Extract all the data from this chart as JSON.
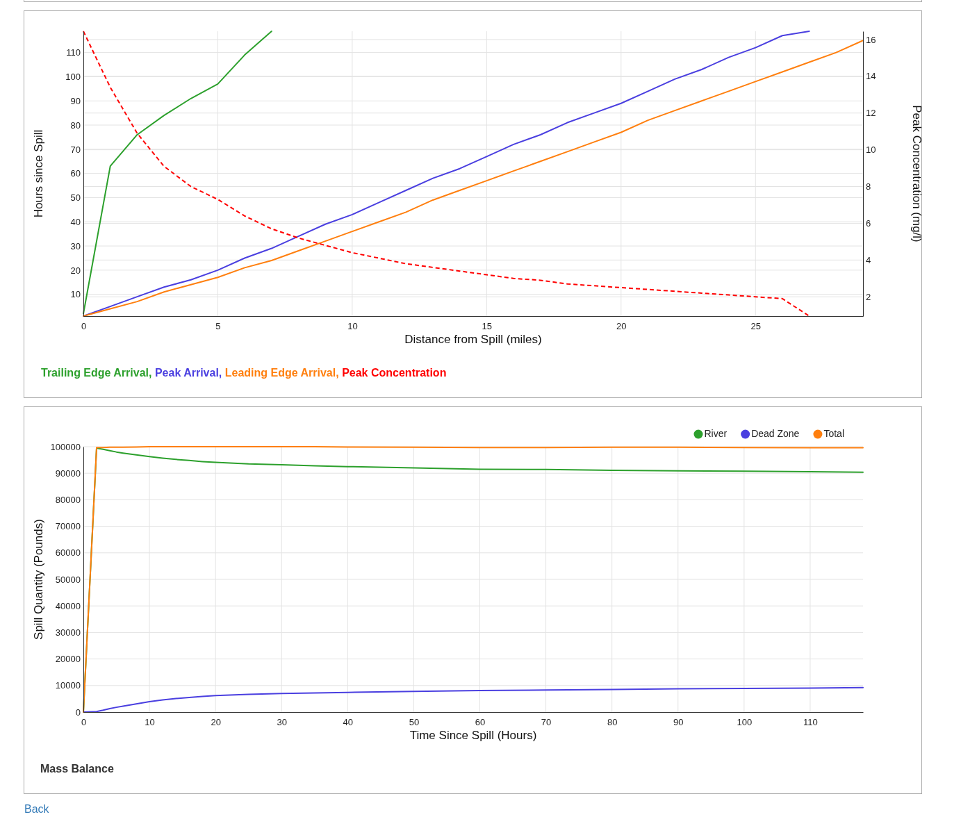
{
  "chart_data": [
    {
      "type": "line",
      "xlabel": "Distance from Spill (miles)",
      "ylabel": "Hours since Spill",
      "y2label": "Peak Concentration (mg/l)",
      "xlim": [
        0,
        29
      ],
      "xticks": [
        0,
        5,
        10,
        15,
        20,
        25
      ],
      "ylim": [
        1,
        118.8
      ],
      "yticks": [
        10,
        20,
        30,
        40,
        50,
        60,
        70,
        80,
        90,
        100,
        110
      ],
      "y2lim": [
        0.95,
        16.45
      ],
      "y2ticks": [
        2,
        4,
        6,
        8,
        10,
        12,
        14,
        16
      ],
      "grid": true,
      "legend": "bottom",
      "series": [
        {
          "name": "Trailing Edge Arrival,",
          "color": "#2ca02c",
          "x": [
            0,
            1,
            2,
            3,
            4,
            5,
            6,
            7
          ],
          "values": [
            2,
            63,
            76,
            84,
            91,
            97,
            109,
            118.8
          ]
        },
        {
          "name": "Peak Arrival,",
          "color": "#4a3fe0",
          "x": [
            0,
            1,
            2,
            3,
            4,
            5,
            6,
            7,
            8,
            9,
            10,
            11,
            12,
            13,
            14,
            15,
            16,
            17,
            18,
            19,
            20,
            21,
            22,
            23,
            24,
            25,
            26,
            27
          ],
          "values": [
            1,
            5,
            9,
            13,
            16,
            20,
            25,
            29,
            34,
            39,
            43,
            48,
            53,
            58,
            62,
            67,
            72,
            76,
            81,
            85,
            89,
            94,
            99,
            103,
            108,
            112,
            117,
            118.8
          ]
        },
        {
          "name": "Leading Edge Arrival,",
          "color": "#ff7f0e",
          "x": [
            0,
            1,
            2,
            3,
            4,
            5,
            6,
            7,
            8,
            9,
            10,
            11,
            12,
            13,
            14,
            15,
            16,
            17,
            18,
            19,
            20,
            21,
            22,
            23,
            24,
            25,
            26,
            27,
            28,
            29
          ],
          "values": [
            1,
            4,
            7,
            11,
            14,
            17,
            21,
            24,
            28,
            32,
            36,
            40,
            44,
            49,
            53,
            57,
            61,
            65,
            69,
            73,
            77,
            82,
            86,
            90,
            94,
            98,
            102,
            106,
            110,
            115
          ]
        },
        {
          "name": "Peak Concentration",
          "color": "#ff0000",
          "axis": "y2",
          "line_style": "dashed",
          "x": [
            0,
            1,
            2,
            3,
            4,
            5,
            6,
            7,
            8,
            9,
            10,
            11,
            12,
            13,
            14,
            15,
            16,
            17,
            18,
            19,
            20,
            21,
            22,
            23,
            24,
            25,
            26,
            27
          ],
          "values": [
            16.45,
            13.4,
            10.9,
            9.1,
            8.0,
            7.3,
            6.4,
            5.7,
            5.2,
            4.8,
            4.4,
            4.1,
            3.8,
            3.6,
            3.4,
            3.2,
            3.0,
            2.9,
            2.7,
            2.6,
            2.5,
            2.4,
            2.3,
            2.2,
            2.1,
            2.0,
            1.9,
            0.95
          ]
        }
      ]
    },
    {
      "type": "line",
      "title": "Mass Balance",
      "xlabel": "Time Since Spill (Hours)",
      "ylabel": "Spill Quantity (Pounds)",
      "xlim": [
        0,
        118
      ],
      "xticks": [
        0,
        10,
        20,
        30,
        40,
        50,
        60,
        70,
        80,
        90,
        100,
        110
      ],
      "ylim": [
        0,
        100000
      ],
      "yticks": [
        0,
        10000,
        20000,
        30000,
        40000,
        50000,
        60000,
        70000,
        80000,
        90000,
        100000
      ],
      "grid": true,
      "legend": "top right",
      "annotations": [
        "Back"
      ],
      "x": [
        0,
        2,
        3,
        4,
        5,
        6,
        8,
        10,
        12,
        14,
        16,
        18,
        20,
        25,
        30,
        35,
        40,
        50,
        60,
        70,
        80,
        90,
        100,
        110,
        118
      ],
      "series": [
        {
          "name": "River",
          "color": "#2ca02c",
          "values": [
            0,
            99500,
            99000,
            98500,
            98000,
            97600,
            96900,
            96300,
            95700,
            95200,
            94800,
            94400,
            94100,
            93500,
            93200,
            92800,
            92500,
            92000,
            91500,
            91400,
            91100,
            90900,
            90800,
            90600,
            90400
          ]
        },
        {
          "name": "Dead Zone",
          "color": "#4a3fe0",
          "values": [
            0,
            200,
            700,
            1300,
            1800,
            2200,
            3100,
            3900,
            4600,
            5100,
            5500,
            5900,
            6200,
            6700,
            7000,
            7200,
            7400,
            7800,
            8100,
            8300,
            8500,
            8800,
            8900,
            9000,
            9200
          ]
        },
        {
          "name": "Total",
          "color": "#ff7f0e",
          "values": [
            0,
            99700,
            99700,
            99800,
            99800,
            99800,
            99900,
            100000,
            100000,
            100000,
            100000,
            100000,
            100000,
            100000,
            100000,
            100000,
            99900,
            99800,
            99700,
            99700,
            99800,
            99800,
            99700,
            99600,
            99600
          ]
        }
      ]
    }
  ]
}
